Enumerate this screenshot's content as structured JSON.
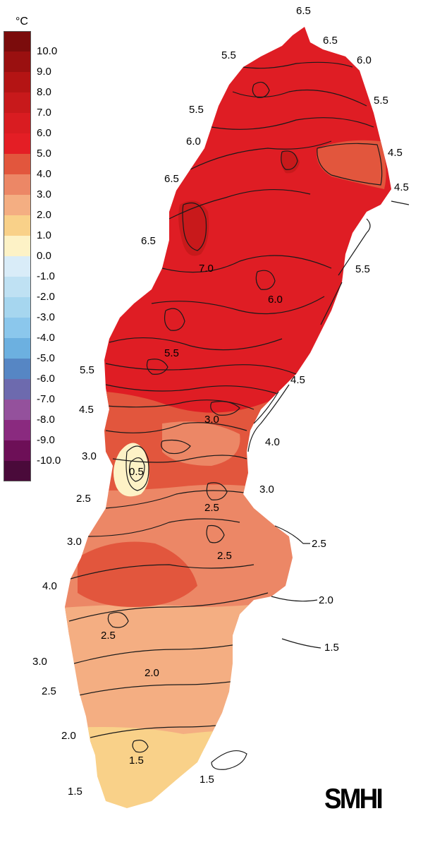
{
  "legend": {
    "unit": "°C",
    "steps": [
      {
        "label": "10.0",
        "color": "#7b0c0c"
      },
      {
        "label": "9.0",
        "color": "#9a1010"
      },
      {
        "label": "8.0",
        "color": "#b41414"
      },
      {
        "label": "7.0",
        "color": "#c8191b"
      },
      {
        "label": "6.0",
        "color": "#d91c21"
      },
      {
        "label": "5.0",
        "color": "#e41e25"
      },
      {
        "label": "4.0",
        "color": "#e2563d"
      },
      {
        "label": "3.0",
        "color": "#ec8766"
      },
      {
        "label": "2.0",
        "color": "#f4ae82"
      },
      {
        "label": "1.0",
        "color": "#f9d189"
      },
      {
        "label": "0.0",
        "color": "#fdf2c6"
      },
      {
        "label": "-1.0",
        "color": "#d9ecf8"
      },
      {
        "label": "-2.0",
        "color": "#bfe1f3"
      },
      {
        "label": "-3.0",
        "color": "#a6d6ef"
      },
      {
        "label": "-4.0",
        "color": "#8bc7ec"
      },
      {
        "label": "-5.0",
        "color": "#6cb0e0"
      },
      {
        "label": "-6.0",
        "color": "#5686c4"
      },
      {
        "label": "-7.0",
        "color": "#6d6aae"
      },
      {
        "label": "-8.0",
        "color": "#94519c"
      },
      {
        "label": "-9.0",
        "color": "#8a2a7f"
      },
      {
        "label": "-10.0",
        "color": "#6d0f57"
      },
      {
        "label": "",
        "color": "#4a0a3a"
      }
    ]
  },
  "zone_colors": {
    "north": "#df1d24",
    "north_dark": "#c8191b",
    "mid": "#e2563d",
    "south": "#ec8766",
    "far_south": "#f4ae82",
    "tip": "#f9d189",
    "cold": "#fdf2c6"
  },
  "contour_labels": [
    "6.5",
    "6.5",
    "5.5",
    "6.0",
    "5.5",
    "5.5",
    "6.0",
    "4.5",
    "4.5",
    "6.5",
    "6.5",
    "7.0",
    "5.5",
    "6.0",
    "5.5",
    "5.5",
    "4.5",
    "4.5",
    "3.0",
    "4.0",
    "3.0",
    "0.5",
    "3.0",
    "2.5",
    "2.5",
    "3.0",
    "2.5",
    "2.5",
    "4.0",
    "2.0",
    "2.5",
    "1.5",
    "3.0",
    "2.0",
    "2.5",
    "2.0",
    "1.5",
    "1.5",
    "1.5"
  ],
  "brand": "SMHI"
}
